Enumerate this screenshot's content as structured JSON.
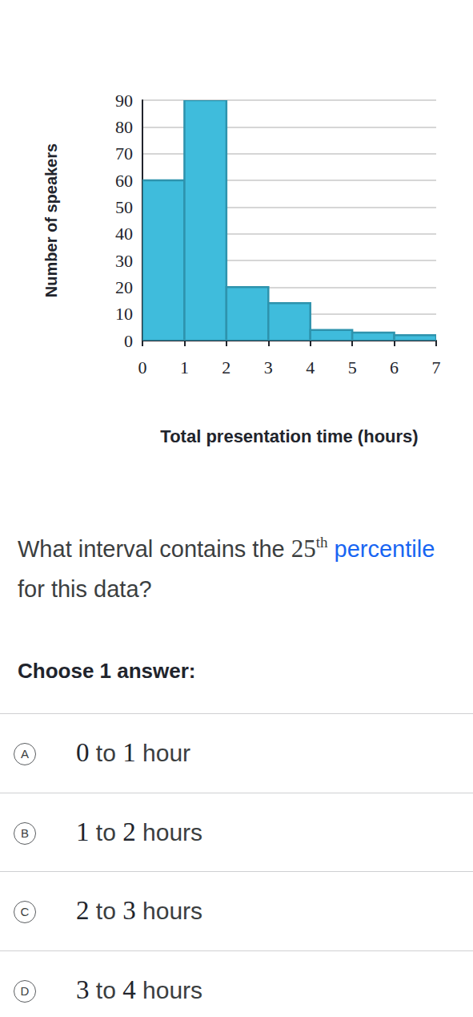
{
  "chart_data": {
    "type": "histogram",
    "x_label": "Total presentation time (hours)",
    "y_label": "Number of speakers",
    "bins": [
      0,
      1,
      2,
      3,
      4,
      5,
      6,
      7
    ],
    "values": [
      60,
      90,
      20,
      14,
      4,
      3,
      2
    ],
    "color": "#3fbcdc",
    "xlim": [
      0,
      7
    ],
    "xticks": [
      0,
      1,
      2,
      3,
      4,
      5,
      6,
      7
    ],
    "ylim": [
      0,
      90
    ],
    "yticks": [
      0,
      10,
      20,
      30,
      40,
      50,
      60,
      70,
      80,
      90
    ],
    "grid": true
  },
  "question": [
    {
      "text": "What interval contains the ",
      "style": "plain"
    },
    {
      "text": "25",
      "style": "math"
    },
    {
      "text": "th",
      "style": "sup"
    },
    {
      "text": " ",
      "style": "plain"
    },
    {
      "text": "percentile",
      "style": "link"
    },
    {
      "text": " for this data?",
      "style": "plain"
    }
  ],
  "prompt": "Choose 1 answer:",
  "options": [
    {
      "letter": "A",
      "text": "0 to 1 hour"
    },
    {
      "letter": "B",
      "text": "1 to 2 hours"
    },
    {
      "letter": "C",
      "text": "2 to 3 hours"
    },
    {
      "letter": "D",
      "text": "3 to 4 hours"
    }
  ]
}
